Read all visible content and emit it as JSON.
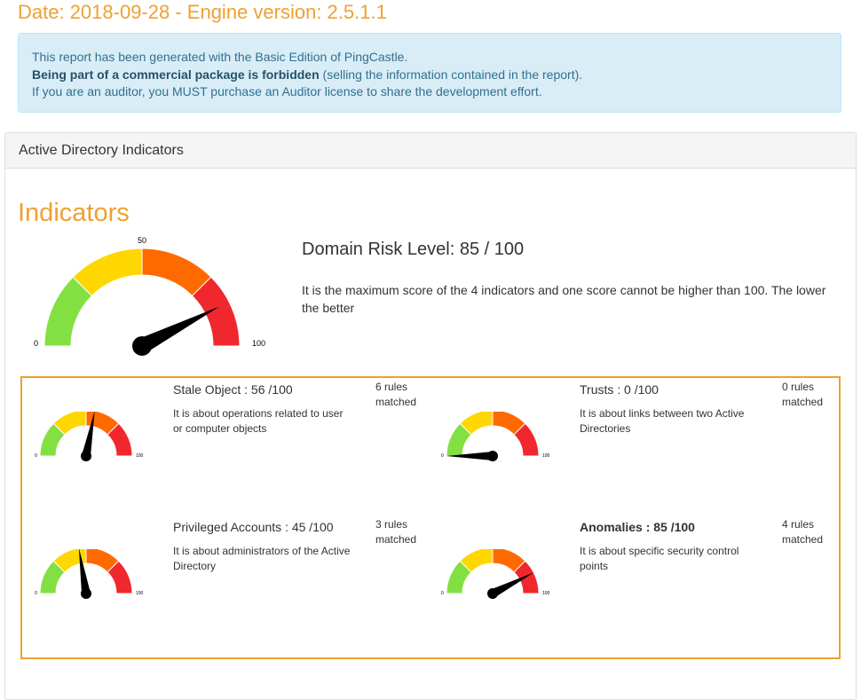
{
  "header": {
    "date_line": "Date: 2018-09-28 - Engine version: 2.5.1.1"
  },
  "notice": {
    "line1": "This report has been generated with the Basic Edition of PingCastle.",
    "line2_bold": "Being part of a commercial package is forbidden",
    "line2_rest": " (selling the information contained in the report).",
    "line3": "If you are an auditor, you MUST purchase an Auditor license to share the development effort."
  },
  "panel": {
    "heading": "Active Directory Indicators"
  },
  "indicators": {
    "title": "Indicators",
    "gauge": {
      "value": 85,
      "min_label": "0",
      "mid_label": "50",
      "max_label": "100"
    },
    "risk_title": "Domain Risk Level: 85 / 100",
    "risk_desc": "It is the maximum score of the 4 indicators and one score cannot be higher than 100. The lower the better",
    "colors": {
      "green": "#83e043",
      "yellow": "#ffd700",
      "orange": "#ff6a00",
      "red": "#f0272d",
      "needle": "#000000"
    },
    "cards": [
      {
        "title": "Stale Object : 56 /100",
        "value": 56,
        "desc": "It is about operations related to user or computer objects",
        "rules": "6 rules matched",
        "bold": false
      },
      {
        "title": "Trusts : 0 /100",
        "value": 0,
        "desc": "It is about links between two Active Directories",
        "rules": "0 rules matched",
        "bold": false
      },
      {
        "title": "Privileged Accounts : 45 /100",
        "value": 45,
        "desc": "It is about administrators of the Active Directory",
        "rules": "3 rules matched",
        "bold": false
      },
      {
        "title": "Anomalies : 85 /100",
        "value": 85,
        "desc": "It is about specific security control points",
        "rules": "4 rules matched",
        "bold": true
      }
    ]
  }
}
